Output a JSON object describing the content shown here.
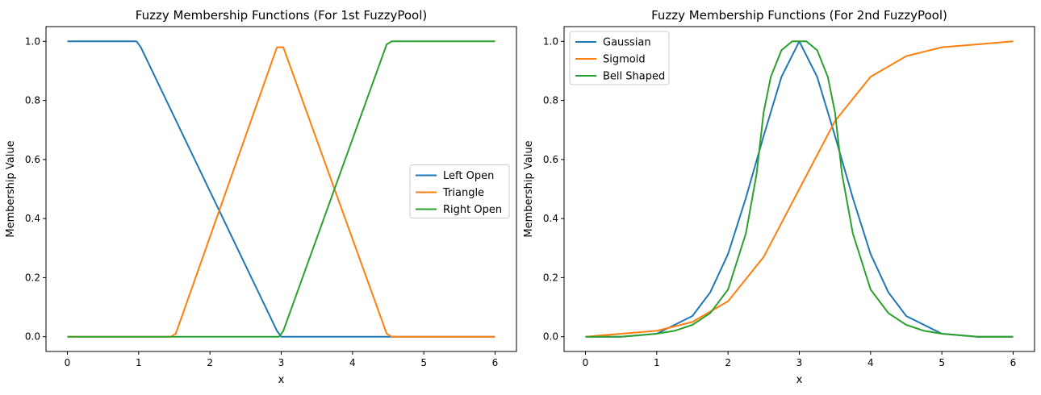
{
  "chart_data": [
    {
      "type": "line",
      "title": "Fuzzy Membership Functions (For 1st FuzzyPool)",
      "xlabel": "x",
      "ylabel": "Membership Value",
      "xlim": [
        -0.3,
        6.3
      ],
      "ylim": [
        -0.05,
        1.05
      ],
      "xticks": [
        "0",
        "1",
        "2",
        "3",
        "4",
        "5",
        "6"
      ],
      "yticks": [
        "0.0",
        "0.2",
        "0.4",
        "0.6",
        "0.8",
        "1.0"
      ],
      "grid": false,
      "legend_position": "center-right",
      "series": [
        {
          "name": "Left Open",
          "color": "#1f77b4",
          "x": [
            0,
            0.97,
            1.03,
            2.94,
            3.0,
            6
          ],
          "y": [
            1.0,
            1.0,
            0.98,
            0.02,
            0.0,
            0.0
          ]
        },
        {
          "name": "Triangle",
          "color": "#ff7f0e",
          "x": [
            0,
            1.45,
            1.52,
            2.94,
            3.03,
            4.48,
            4.55,
            6
          ],
          "y": [
            0.0,
            0.0,
            0.01,
            0.98,
            0.98,
            0.01,
            0.0,
            0.0
          ]
        },
        {
          "name": "Right Open",
          "color": "#2ca02c",
          "x": [
            0,
            2.97,
            3.03,
            4.48,
            4.55,
            6
          ],
          "y": [
            0.0,
            0.0,
            0.02,
            0.99,
            1.0,
            1.0
          ]
        }
      ]
    },
    {
      "type": "line",
      "title": "Fuzzy Membership Functions (For 2nd FuzzyPool)",
      "xlabel": "x",
      "ylabel": "Membership Value",
      "xlim": [
        -0.3,
        6.3
      ],
      "ylim": [
        -0.05,
        1.05
      ],
      "xticks": [
        "0",
        "1",
        "2",
        "3",
        "4",
        "5",
        "6"
      ],
      "yticks": [
        "0.0",
        "0.2",
        "0.4",
        "0.6",
        "0.8",
        "1.0"
      ],
      "grid": false,
      "legend_position": "upper-left",
      "series": [
        {
          "name": "Gaussian",
          "color": "#1f77b4",
          "x": [
            0,
            0.5,
            1,
            1.5,
            1.75,
            2,
            2.25,
            2.5,
            2.75,
            3,
            3.25,
            3.5,
            3.75,
            4,
            4.25,
            4.5,
            5,
            5.5,
            6
          ],
          "y": [
            0.0,
            0.0,
            0.01,
            0.07,
            0.15,
            0.28,
            0.47,
            0.68,
            0.88,
            1.0,
            0.88,
            0.68,
            0.47,
            0.28,
            0.15,
            0.07,
            0.01,
            0.0,
            0.0
          ]
        },
        {
          "name": "Sigmoid",
          "color": "#ff7f0e",
          "x": [
            0,
            0.5,
            1,
            1.5,
            2,
            2.5,
            3,
            3.5,
            4,
            4.5,
            5,
            5.5,
            6
          ],
          "y": [
            0.0,
            0.01,
            0.02,
            0.05,
            0.12,
            0.27,
            0.5,
            0.73,
            0.88,
            0.95,
            0.98,
            0.99,
            1.0
          ]
        },
        {
          "name": "Bell Shaped",
          "color": "#2ca02c",
          "x": [
            0,
            0.5,
            1,
            1.25,
            1.5,
            1.75,
            2,
            2.25,
            2.4,
            2.5,
            2.6,
            2.75,
            2.9,
            3,
            3.1,
            3.25,
            3.4,
            3.5,
            3.6,
            3.75,
            4,
            4.25,
            4.5,
            4.75,
            5,
            5.5,
            6
          ],
          "y": [
            0.0,
            0.0,
            0.01,
            0.02,
            0.04,
            0.08,
            0.16,
            0.35,
            0.55,
            0.76,
            0.88,
            0.97,
            1.0,
            1.0,
            1.0,
            0.97,
            0.88,
            0.76,
            0.55,
            0.35,
            0.16,
            0.08,
            0.04,
            0.02,
            0.01,
            0.0,
            0.0
          ]
        }
      ]
    }
  ]
}
